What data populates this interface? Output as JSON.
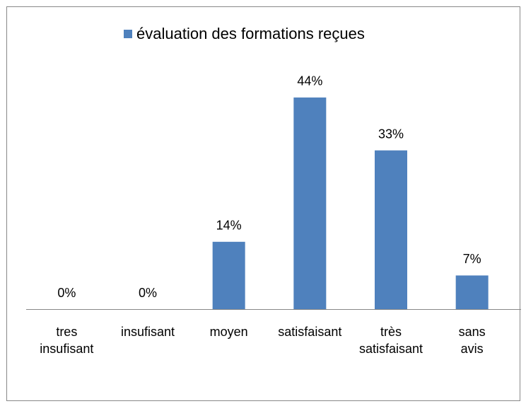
{
  "chart_data": {
    "type": "bar",
    "categories": [
      "tres insufisant",
      "insufisant",
      "moyen",
      "satisfaisant",
      "très satisfaisant",
      "sans avis"
    ],
    "series": [
      {
        "name": "évaluation des formations reçues",
        "color": "#4f81bd",
        "values": [
          0,
          0,
          14,
          44,
          33,
          7
        ],
        "value_labels": [
          "0%",
          "0%",
          "14%",
          "44%",
          "33%",
          "7%"
        ]
      }
    ],
    "legend": "top"
  }
}
